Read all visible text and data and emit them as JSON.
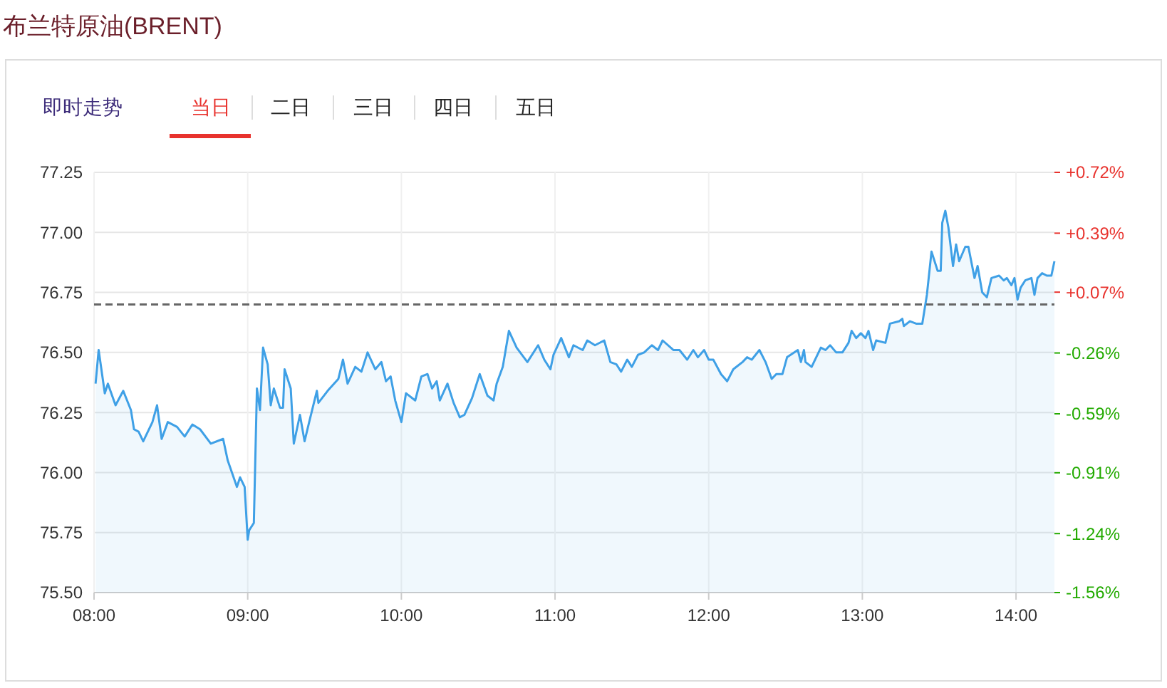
{
  "chart_data": {
    "type": "area",
    "title": "布兰特原油(BRENT)",
    "annotations": [
      "即时走势",
      "当日",
      "二日",
      "三日",
      "四日",
      "五日"
    ],
    "x": [
      8.01,
      8.03,
      8.07,
      8.09,
      8.14,
      8.19,
      8.24,
      8.26,
      8.29,
      8.32,
      8.38,
      8.41,
      8.44,
      8.48,
      8.54,
      8.59,
      8.64,
      8.69,
      8.76,
      8.84,
      8.87,
      8.93,
      8.95,
      8.98,
      9.0,
      9.01,
      9.04,
      9.06,
      9.08,
      9.1,
      9.13,
      9.15,
      9.17,
      9.21,
      9.23,
      9.24,
      9.28,
      9.3,
      9.34,
      9.37,
      9.4,
      9.45,
      9.46,
      9.52,
      9.59,
      9.62,
      9.65,
      9.7,
      9.74,
      9.78,
      9.83,
      9.87,
      9.9,
      9.93,
      9.96,
      10.0,
      10.03,
      10.09,
      10.13,
      10.17,
      10.2,
      10.23,
      10.25,
      10.3,
      10.34,
      10.38,
      10.41,
      10.46,
      10.51,
      10.56,
      10.6,
      10.62,
      10.66,
      10.7,
      10.75,
      10.82,
      10.89,
      10.93,
      10.97,
      10.99,
      11.04,
      11.09,
      11.12,
      11.18,
      11.21,
      11.26,
      11.32,
      11.36,
      11.4,
      11.43,
      11.47,
      11.5,
      11.54,
      11.58,
      11.63,
      11.67,
      11.7,
      11.77,
      11.81,
      11.86,
      11.9,
      11.93,
      11.97,
      12.0,
      12.03,
      12.08,
      12.12,
      12.16,
      12.22,
      12.25,
      12.28,
      12.33,
      12.37,
      12.41,
      12.44,
      12.48,
      12.51,
      12.58,
      12.6,
      12.62,
      12.63,
      12.67,
      12.73,
      12.76,
      12.79,
      12.83,
      12.87,
      12.91,
      12.93,
      12.96,
      12.99,
      13.02,
      13.04,
      13.07,
      13.09,
      13.15,
      13.18,
      13.24,
      13.26,
      13.27,
      13.31,
      13.35,
      13.39,
      13.42,
      13.45,
      13.49,
      13.51,
      13.52,
      13.54,
      13.56,
      13.59,
      13.61,
      13.63,
      13.67,
      13.69,
      13.73,
      13.75,
      13.78,
      13.81,
      13.84,
      13.89,
      13.92,
      13.94,
      13.97,
      13.99,
      14.01,
      14.03,
      14.06,
      14.1,
      14.12,
      14.14,
      14.17,
      14.2,
      14.23,
      14.25
    ],
    "series": [
      {
        "color": "#3fa0e6",
        "values": [
          76.37,
          76.51,
          76.33,
          76.37,
          76.28,
          76.34,
          76.26,
          76.18,
          76.17,
          76.13,
          76.21,
          76.28,
          76.14,
          76.21,
          76.19,
          76.15,
          76.2,
          76.18,
          76.12,
          76.14,
          76.05,
          75.94,
          75.98,
          75.94,
          75.72,
          75.76,
          75.79,
          76.35,
          76.26,
          76.52,
          76.45,
          76.28,
          76.35,
          76.27,
          76.27,
          76.43,
          76.35,
          76.12,
          76.24,
          76.13,
          76.21,
          76.34,
          76.29,
          76.34,
          76.39,
          76.47,
          76.37,
          76.44,
          76.42,
          76.5,
          76.43,
          76.46,
          76.38,
          76.4,
          76.3,
          76.21,
          76.33,
          76.3,
          76.4,
          76.41,
          76.35,
          76.38,
          76.3,
          76.37,
          76.29,
          76.23,
          76.24,
          76.31,
          76.41,
          76.32,
          76.3,
          76.37,
          76.44,
          76.59,
          76.52,
          76.46,
          76.53,
          76.47,
          76.43,
          76.49,
          76.56,
          76.48,
          76.53,
          76.51,
          76.55,
          76.53,
          76.55,
          76.46,
          76.45,
          76.42,
          76.47,
          76.44,
          76.49,
          76.5,
          76.53,
          76.51,
          76.55,
          76.51,
          76.51,
          76.47,
          76.51,
          76.48,
          76.51,
          76.47,
          76.47,
          76.41,
          76.38,
          76.43,
          76.46,
          76.48,
          76.47,
          76.51,
          76.46,
          76.39,
          76.41,
          76.41,
          76.48,
          76.51,
          76.46,
          76.51,
          76.46,
          76.44,
          76.52,
          76.51,
          76.53,
          76.5,
          76.5,
          76.54,
          76.59,
          76.56,
          76.58,
          76.56,
          76.59,
          76.51,
          76.55,
          76.54,
          76.62,
          76.63,
          76.64,
          76.61,
          76.63,
          76.62,
          76.62,
          76.74,
          76.92,
          76.84,
          76.84,
          77.04,
          77.09,
          77.02,
          76.86,
          76.95,
          76.88,
          76.94,
          76.94,
          76.81,
          76.86,
          76.75,
          76.73,
          76.81,
          76.82,
          76.8,
          76.81,
          76.78,
          76.81,
          76.72,
          76.77,
          76.8,
          76.81,
          76.74,
          76.81,
          76.83,
          76.82,
          76.82,
          76.88
        ]
      }
    ],
    "xlim": [
      8,
      14.25
    ],
    "xticks": [
      {
        "value": 8,
        "label": "08:00"
      },
      {
        "value": 9,
        "label": "09:00"
      },
      {
        "value": 10,
        "label": "10:00"
      },
      {
        "value": 11,
        "label": "11:00"
      },
      {
        "value": 12,
        "label": "12:00"
      },
      {
        "value": 13,
        "label": "13:00"
      },
      {
        "value": 14,
        "label": "14:00"
      }
    ],
    "ylim": [
      75.5,
      77.25
    ],
    "yticks": [
      {
        "value": 75.5,
        "label": "75.50"
      },
      {
        "value": 75.75,
        "label": "75.75"
      },
      {
        "value": 76,
        "label": "76.00"
      },
      {
        "value": 76.25,
        "label": "76.25"
      },
      {
        "value": 76.5,
        "label": "76.50"
      },
      {
        "value": 76.75,
        "label": "76.75"
      },
      {
        "value": 77,
        "label": "77.00"
      },
      {
        "value": 77.25,
        "label": "77.25"
      }
    ],
    "y2lim": [
      -1.56,
      0.72
    ],
    "y2ticks": [
      {
        "value": 0.72,
        "label": "+0.72%"
      },
      {
        "value": 0.39,
        "label": "+0.39%"
      },
      {
        "value": 0.07,
        "label": "+0.07%"
      },
      {
        "value": -0.26,
        "label": "-0.26%"
      },
      {
        "value": -0.59,
        "label": "-0.59%"
      },
      {
        "value": -0.91,
        "label": "-0.91%"
      },
      {
        "value": -1.24,
        "label": "-1.24%"
      },
      {
        "value": -1.56,
        "label": "-1.56%"
      }
    ],
    "ref_lines": [
      {
        "axis": "y",
        "value": 76.7,
        "color": "#666666",
        "line_style": "dashed"
      }
    ],
    "grid": true,
    "marker": "none",
    "line_style": "solid"
  }
}
